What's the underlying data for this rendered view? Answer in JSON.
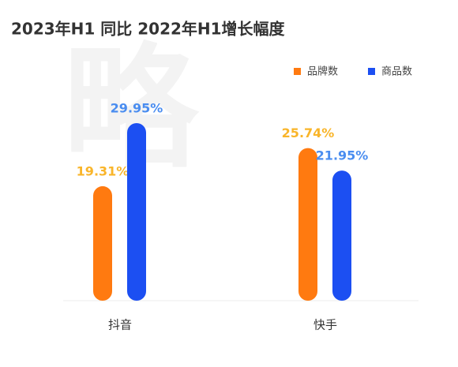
{
  "chart_data": {
    "type": "bar",
    "title": "2023年H1 同比 2022年H1增长幅度",
    "watermark": "略",
    "categories": [
      "抖音",
      "快手"
    ],
    "series": [
      {
        "name": "品牌数",
        "color": "#ff7a10",
        "label_color": "#f9b52a",
        "values": [
          19.31,
          25.74
        ],
        "value_labels": [
          "19.31%",
          "25.74%"
        ]
      },
      {
        "name": "商品数",
        "color": "#1c4ff2",
        "label_color": "#4a8df0",
        "values": [
          29.95,
          21.95
        ],
        "value_labels": [
          "29.95%",
          "21.95%"
        ]
      }
    ],
    "legend": "top-right"
  }
}
